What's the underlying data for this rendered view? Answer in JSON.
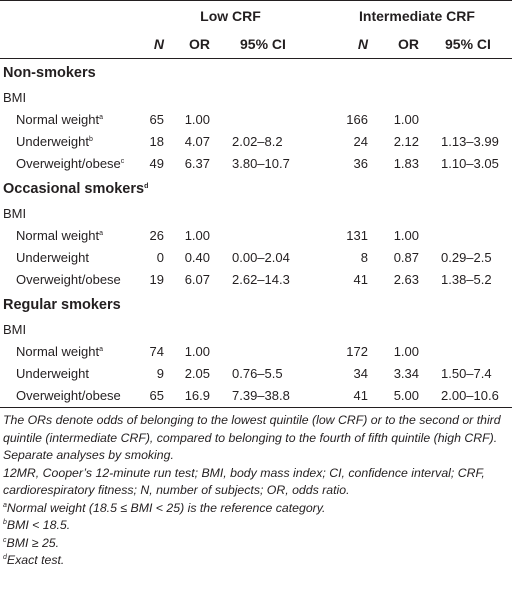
{
  "header": {
    "group_low": "Low CRF",
    "group_intermediate": "Intermediate CRF",
    "col_n": "N",
    "col_or": "OR",
    "col_ci": "95% CI"
  },
  "sections": [
    {
      "title": "Non-smokers",
      "title_sup": "",
      "sub": "BMI",
      "rows": [
        {
          "label": "Normal weight",
          "sup": "a",
          "low_n": "65",
          "low_or": "1.00",
          "low_ci": "",
          "int_n": "166",
          "int_or": "1.00",
          "int_ci": ""
        },
        {
          "label": "Underweight",
          "sup": "b",
          "low_n": "18",
          "low_or": "4.07",
          "low_ci": "2.02–8.2",
          "int_n": "24",
          "int_or": "2.12",
          "int_ci": "1.13–3.99"
        },
        {
          "label": "Overweight/obese",
          "sup": "c",
          "low_n": "49",
          "low_or": "6.37",
          "low_ci": "3.80–10.7",
          "int_n": "36",
          "int_or": "1.83",
          "int_ci": "1.10–3.05"
        }
      ]
    },
    {
      "title": "Occasional smokers",
      "title_sup": "d",
      "sub": "BMI",
      "rows": [
        {
          "label": "Normal weight",
          "sup": "a",
          "low_n": "26",
          "low_or": "1.00",
          "low_ci": "",
          "int_n": "131",
          "int_or": "1.00",
          "int_ci": ""
        },
        {
          "label": "Underweight",
          "sup": "",
          "low_n": "0",
          "low_or": "0.40",
          "low_ci": "0.00–2.04",
          "int_n": "8",
          "int_or": "0.87",
          "int_ci": "0.29–2.5"
        },
        {
          "label": "Overweight/obese",
          "sup": "",
          "low_n": "19",
          "low_or": "6.07",
          "low_ci": "2.62–14.3",
          "int_n": "41",
          "int_or": "2.63",
          "int_ci": "1.38–5.2"
        }
      ]
    },
    {
      "title": "Regular smokers",
      "title_sup": "",
      "sub": "BMI",
      "rows": [
        {
          "label": "Normal weight",
          "sup": "a",
          "low_n": "74",
          "low_or": "1.00",
          "low_ci": "",
          "int_n": "172",
          "int_or": "1.00",
          "int_ci": ""
        },
        {
          "label": "Underweight",
          "sup": "",
          "low_n": "9",
          "low_or": "2.05",
          "low_ci": "0.76–5.5",
          "int_n": "34",
          "int_or": "3.34",
          "int_ci": "1.50–7.4"
        },
        {
          "label": "Overweight/obese",
          "sup": "",
          "low_n": "65",
          "low_or": "16.9",
          "low_ci": "7.39–38.8",
          "int_n": "41",
          "int_or": "5.00",
          "int_ci": "2.00–10.6"
        }
      ]
    }
  ],
  "notes": {
    "main": "The ORs denote odds of belonging to the lowest quintile (low CRF) or to the second or third quintile (intermediate CRF), compared to belonging to the fourth of fifth quintile (high CRF). Separate analyses by smoking.",
    "abbrev": "12MR, Cooper’s 12-minute run test; BMI, body mass index; CI, confidence interval; CRF, cardiorespiratory fitness; N, number of subjects; OR, odds ratio.",
    "footnotes": [
      {
        "mark": "a",
        "text": "Normal weight (18.5 ≤ BMI < 25) is the reference category."
      },
      {
        "mark": "b",
        "text": "BMI < 18.5."
      },
      {
        "mark": "c",
        "text": "BMI ≥ 25."
      },
      {
        "mark": "d",
        "text": "Exact test."
      }
    ]
  }
}
